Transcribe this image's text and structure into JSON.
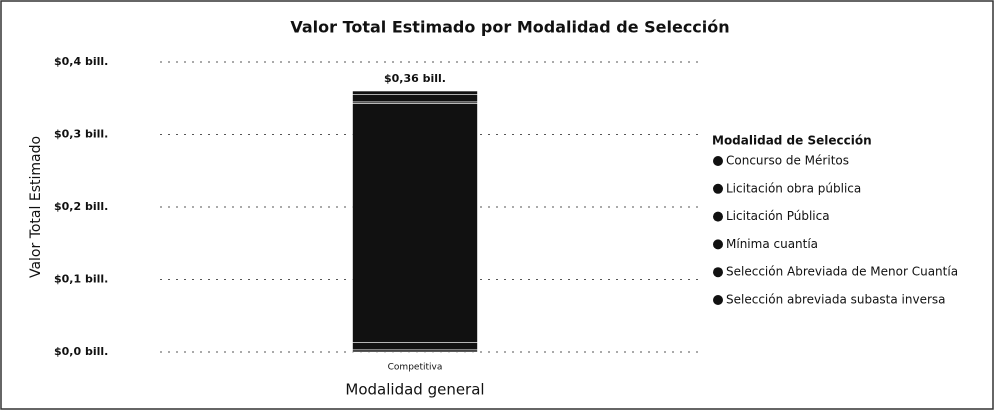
{
  "chart_data": {
    "type": "stacked_bar",
    "title": "Valor Total Estimado por Modalidad de Selección",
    "y_label": "Valor Total Estimado",
    "x_label": "Modalidad general",
    "legend_title": "Modalidad de Selección",
    "categories": [
      "Competitiva"
    ],
    "series": [
      {
        "name": "Concurso de Méritos",
        "color": "#111111",
        "values": [
          0.003
        ]
      },
      {
        "name": "Licitación obra pública",
        "color": "#111111",
        "values": [
          0.01
        ]
      },
      {
        "name": "Licitación Pública",
        "color": "#111111",
        "values": [
          0.33
        ]
      },
      {
        "name": "Mínima cuantía",
        "color": "#111111",
        "values": [
          0.002
        ]
      },
      {
        "name": "Selección Abreviada de Menor Cuantía",
        "color": "#111111",
        "values": [
          0.01
        ]
      },
      {
        "name": "Selección abreviada subasta inversa",
        "color": "#111111",
        "values": [
          0.005
        ]
      }
    ],
    "totals": [
      0.36
    ],
    "total_labels": [
      "$0,36 bill."
    ],
    "ylim": [
      0,
      0.4
    ],
    "yticks": [
      {
        "value": 0,
        "label": "$0,0 bill."
      },
      {
        "value": 0.1,
        "label": "$0,1 bill."
      },
      {
        "value": 0.2,
        "label": "$0,2 bill."
      },
      {
        "value": 0.3,
        "label": "$0,3 bill."
      },
      {
        "value": 0.4,
        "label": "$0,4 bill."
      }
    ],
    "grid": true
  }
}
